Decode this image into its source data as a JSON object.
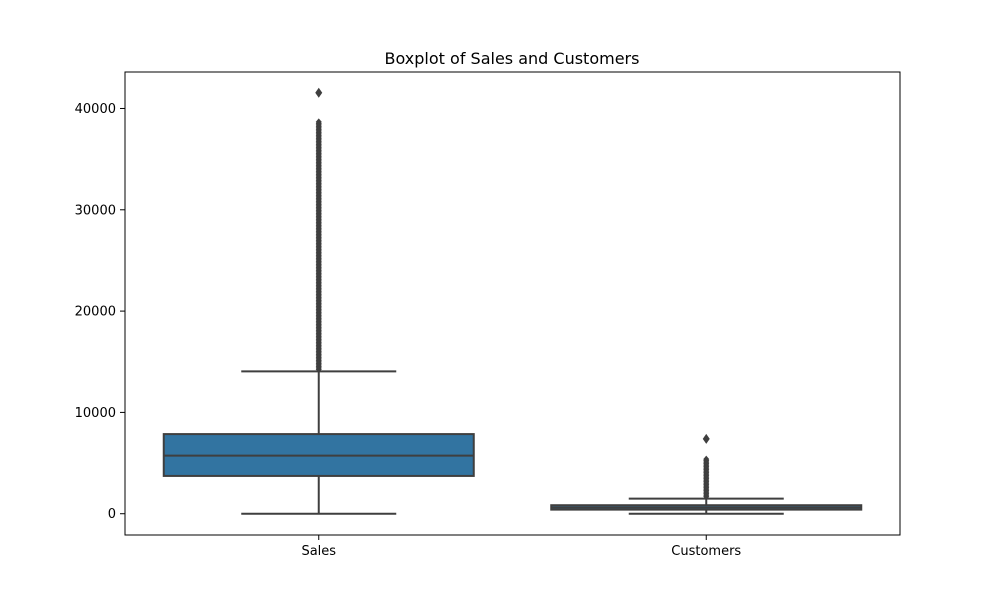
{
  "chart_data": {
    "type": "boxplot",
    "title": "Boxplot of Sales and Customers",
    "xlabel": "",
    "ylabel": "",
    "ylim": [
      -2100,
      43600
    ],
    "yticks": [
      0,
      10000,
      20000,
      30000,
      40000
    ],
    "grid": false,
    "legend": "none",
    "categories": [
      "Sales",
      "Customers"
    ],
    "boxes": [
      {
        "category": "Sales",
        "color": "#3274a1",
        "whisker_low": 0,
        "q1": 3730,
        "median": 5740,
        "q3": 7860,
        "whisker_high": 14050,
        "outlier_range": [
          14050,
          38700
        ],
        "max_outlier": 41550
      },
      {
        "category": "Customers",
        "color": "#3274a1",
        "whisker_low": 0,
        "q1": 405,
        "median": 610,
        "q3": 840,
        "whisker_high": 1490,
        "outlier_range": [
          1490,
          5500
        ],
        "max_outlier": 7390
      }
    ],
    "colors": {
      "box_fill": "#3274a1",
      "line": "#3f3f3f",
      "axes": "#000000"
    }
  }
}
